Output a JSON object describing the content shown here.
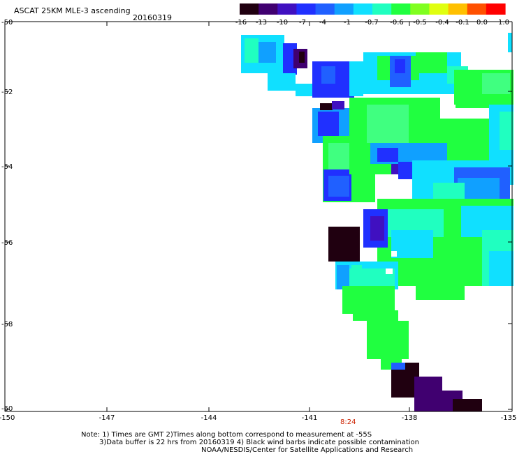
{
  "header": {
    "title": "ASCAT 25KM MLE-3 ascending",
    "date": "20160319"
  },
  "colorbar": {
    "labels": [
      "-16",
      "-13",
      "-10",
      "-7",
      "-4",
      "-1",
      "-0.7",
      "-0.6",
      "-0.5",
      "-0.4",
      "-0.1",
      "0.0",
      "1.0"
    ],
    "colors": [
      "#200010",
      "#400070",
      "#4010c0",
      "#2030ff",
      "#2060ff",
      "#10a0ff",
      "#10e0ff",
      "#20ffc0",
      "#20ff40",
      "#80ff20",
      "#e0ff10",
      "#ffc000",
      "#ff5000",
      "#ff0000"
    ]
  },
  "axes": {
    "lat_labels": [
      "-50",
      "-52",
      "-54",
      "-56",
      "-58",
      "-60"
    ],
    "lon_labels": [
      "-150",
      "-147",
      "-144",
      "-141",
      "-138",
      "-135"
    ],
    "time_label": "8:24"
  },
  "notes": {
    "line1": "Note: 1) Times are GMT 2)Times along bottom correspond to measurement at -55S",
    "line2": "3)Data buffer is 22 hrs from 20160319 4) Black wind barbs indicate possible contamination",
    "line3": "NOAA/NESDIS/Center for Satellite Applications and Research"
  },
  "palette": {
    "green": "#20ff40",
    "lightgreen": "#40ff80",
    "aqua": "#20ffc0",
    "cyan": "#10e0ff",
    "lightblue": "#10a0ff",
    "blue": "#2060ff",
    "deepblue": "#2030ff",
    "indigo": "#4010c0",
    "purple": "#400070",
    "black": "#200010"
  }
}
